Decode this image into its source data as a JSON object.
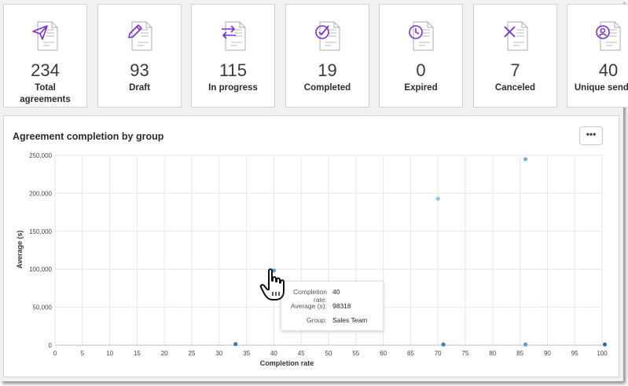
{
  "cards": [
    {
      "value": "234",
      "label_lines": [
        "Total",
        "agreements"
      ],
      "icon": "send-document-icon"
    },
    {
      "value": "93",
      "label_lines": [
        "Draft"
      ],
      "icon": "draft-document-icon"
    },
    {
      "value": "115",
      "label_lines": [
        "In progress"
      ],
      "icon": "in-progress-document-icon"
    },
    {
      "value": "19",
      "label_lines": [
        "Completed"
      ],
      "icon": "completed-document-icon"
    },
    {
      "value": "0",
      "label_lines": [
        "Expired"
      ],
      "icon": "expired-document-icon"
    },
    {
      "value": "7",
      "label_lines": [
        "Canceled"
      ],
      "icon": "canceled-document-icon"
    },
    {
      "value": "40",
      "label_lines": [
        "Unique senders"
      ],
      "icon": "senders-document-icon"
    }
  ],
  "panel": {
    "title": "Agreement completion by group",
    "more_label": "•••"
  },
  "chart_data": {
    "type": "scatter",
    "title": "",
    "xlabel": "Completion rate",
    "ylabel": "Average (s)",
    "xlim": [
      0,
      100
    ],
    "ylim": [
      0,
      250000
    ],
    "x_ticks": [
      0,
      5,
      10,
      15,
      20,
      25,
      30,
      35,
      40,
      45,
      50,
      55,
      60,
      65,
      70,
      75,
      80,
      85,
      90,
      95,
      100
    ],
    "y_ticks": [
      0,
      50000,
      100000,
      150000,
      200000,
      250000
    ],
    "y_tick_labels": [
      "0",
      "50,000",
      "100,000",
      "150,000",
      "200,000",
      "250,000"
    ],
    "grid": true,
    "points": [
      {
        "x": 33,
        "y": 1500,
        "color": "#3e7fa6"
      },
      {
        "x": 40,
        "y": 98318,
        "color": "#5a9ec4"
      },
      {
        "x": 70,
        "y": 193000,
        "color": "#8fc9dc"
      },
      {
        "x": 71,
        "y": 1000,
        "color": "#3e7fa6"
      },
      {
        "x": 86,
        "y": 245000,
        "color": "#6fb7cf"
      },
      {
        "x": 86,
        "y": 1000,
        "color": "#5a9ec4"
      },
      {
        "x": 100.5,
        "y": 1000,
        "color": "#2f6f96"
      }
    ]
  },
  "tooltip": {
    "rows": [
      {
        "key": "Completion rate:",
        "value": "40"
      },
      {
        "key": "Average (s):",
        "value": "98318"
      },
      {
        "key": "Group:",
        "value": "Sales Team"
      }
    ]
  },
  "colors": {
    "icon_purple": "#7b2fd1",
    "icon_grey": "#b9b9b9"
  }
}
